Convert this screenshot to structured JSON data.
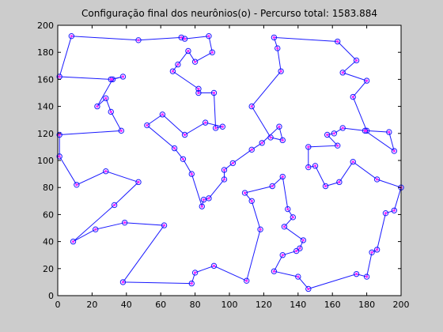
{
  "chart_data": {
    "type": "line",
    "title": "Configuração final dos neurônios(o) - Percurso total: 1583.884",
    "xlabel": "",
    "ylabel": "",
    "xlim": [
      0,
      200
    ],
    "ylim": [
      0,
      200
    ],
    "xticks": [
      0,
      20,
      40,
      60,
      80,
      100,
      120,
      140,
      160,
      180,
      200
    ],
    "yticks": [
      0,
      20,
      40,
      60,
      80,
      100,
      120,
      140,
      160,
      180,
      200
    ],
    "grid": false,
    "colors": {
      "background": "#cccccc",
      "plot_area": "#ffffff",
      "route": "#1a1aff",
      "marker_fill": "#ff2aff"
    },
    "series": [
      {
        "closed": true,
        "points": [
          [
            8,
            192
          ],
          [
            47,
            189
          ],
          [
            72,
            191
          ],
          [
            74,
            190
          ],
          [
            88,
            192
          ],
          [
            90,
            180
          ],
          [
            80,
            173
          ],
          [
            76,
            181
          ],
          [
            70,
            171
          ],
          [
            67,
            166
          ],
          [
            82,
            153
          ],
          [
            82,
            150
          ],
          [
            91,
            150
          ],
          [
            92,
            124
          ],
          [
            96,
            125
          ],
          [
            86,
            128
          ],
          [
            74,
            119
          ],
          [
            61,
            134
          ],
          [
            52,
            126
          ],
          [
            68,
            109
          ],
          [
            73,
            101
          ],
          [
            78,
            90
          ],
          [
            84,
            66
          ],
          [
            85,
            71
          ],
          [
            88,
            72
          ],
          [
            97,
            86
          ],
          [
            97,
            93
          ],
          [
            102,
            98
          ],
          [
            113,
            108
          ],
          [
            119,
            113
          ],
          [
            129,
            125
          ],
          [
            131,
            115
          ],
          [
            124,
            117
          ],
          [
            113,
            140
          ],
          [
            130,
            166
          ],
          [
            128,
            183
          ],
          [
            126,
            191
          ],
          [
            163,
            188
          ],
          [
            174,
            174
          ],
          [
            166,
            165
          ],
          [
            180,
            159
          ],
          [
            172,
            147
          ],
          [
            180,
            122
          ],
          [
            193,
            121
          ],
          [
            196,
            107
          ],
          [
            179,
            122
          ],
          [
            166,
            124
          ],
          [
            161,
            120
          ],
          [
            157,
            119
          ],
          [
            163,
            111
          ],
          [
            146,
            110
          ],
          [
            146,
            95
          ],
          [
            150,
            96
          ],
          [
            156,
            81
          ],
          [
            164,
            84
          ],
          [
            172,
            99
          ],
          [
            186,
            86
          ],
          [
            200,
            80
          ],
          [
            196,
            63
          ],
          [
            191,
            61
          ],
          [
            186,
            34
          ],
          [
            183,
            32
          ],
          [
            180,
            14
          ],
          [
            174,
            16
          ],
          [
            146,
            5
          ],
          [
            140,
            14
          ],
          [
            126,
            18
          ],
          [
            131,
            30
          ],
          [
            139,
            33
          ],
          [
            141,
            35
          ],
          [
            143,
            41
          ],
          [
            132,
            51
          ],
          [
            137,
            58
          ],
          [
            134,
            64
          ],
          [
            131,
            88
          ],
          [
            125,
            81
          ],
          [
            109,
            76
          ],
          [
            113,
            70
          ],
          [
            118,
            49
          ],
          [
            110,
            11
          ],
          [
            91,
            22
          ],
          [
            80,
            17
          ],
          [
            78,
            9
          ],
          [
            38,
            10
          ],
          [
            62,
            52
          ],
          [
            39,
            54
          ],
          [
            22,
            49
          ],
          [
            9,
            40
          ],
          [
            33,
            67
          ],
          [
            47,
            84
          ],
          [
            28,
            92
          ],
          [
            11,
            82
          ],
          [
            1,
            103
          ],
          [
            1,
            119
          ],
          [
            37,
            122
          ],
          [
            31,
            136
          ],
          [
            28,
            146
          ],
          [
            23,
            140
          ],
          [
            32,
            160
          ],
          [
            38,
            162
          ],
          [
            31,
            160
          ],
          [
            1,
            162
          ]
        ]
      }
    ]
  }
}
